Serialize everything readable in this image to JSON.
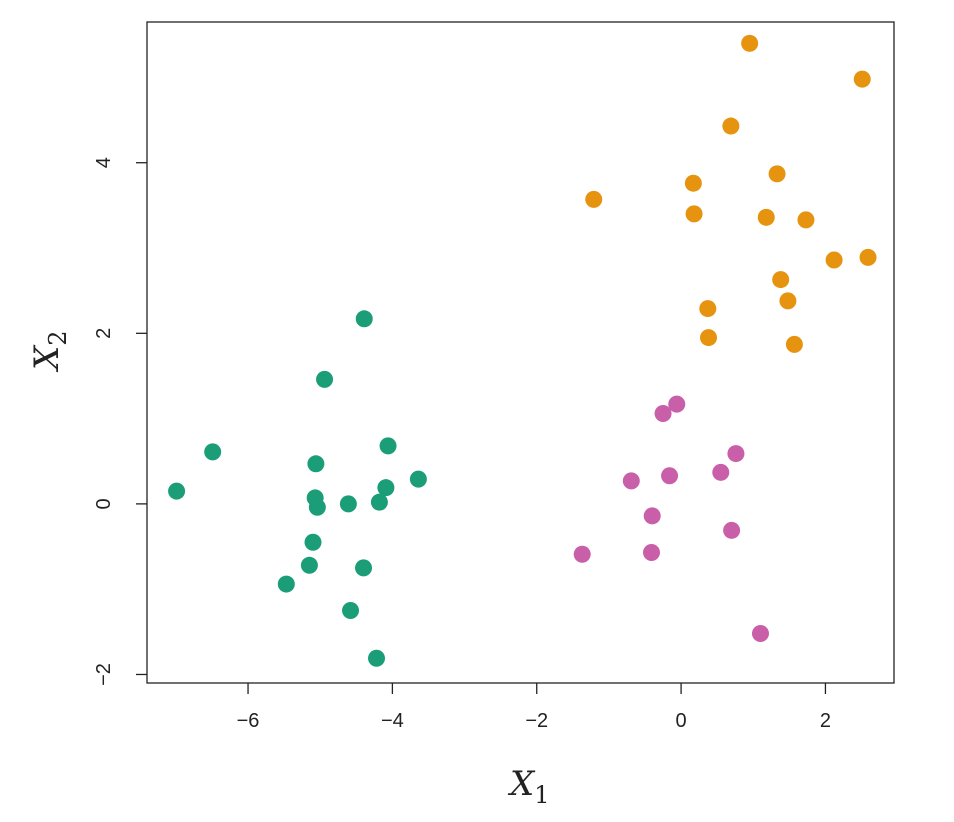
{
  "chart_data": {
    "type": "scatter",
    "xlabel": "X",
    "xlabel_sub": "1",
    "ylabel": "X",
    "ylabel_sub": "2",
    "xlim": [
      -7.4,
      2.95
    ],
    "ylim": [
      -2.1,
      5.65
    ],
    "x_ticks": [
      -6,
      -4,
      -2,
      0,
      2
    ],
    "x_tick_labels": [
      "−6",
      "−4",
      "−2",
      "0",
      "2"
    ],
    "y_ticks": [
      -2,
      0,
      2,
      4
    ],
    "y_tick_labels": [
      "−2",
      "0",
      "2",
      "4"
    ],
    "grid": false,
    "series": [
      {
        "color": "#1b9e77",
        "points": [
          [
            -4.39,
            2.17
          ],
          [
            -4.94,
            1.46
          ],
          [
            -6.49,
            0.61
          ],
          [
            -6.99,
            0.15
          ],
          [
            -5.06,
            0.47
          ],
          [
            -4.06,
            0.68
          ],
          [
            -3.64,
            0.29
          ],
          [
            -4.09,
            0.19
          ],
          [
            -5.07,
            0.07
          ],
          [
            -5.04,
            -0.04
          ],
          [
            -4.61,
            0.0
          ],
          [
            -4.18,
            0.02
          ],
          [
            -5.1,
            -0.45
          ],
          [
            -5.15,
            -0.72
          ],
          [
            -4.4,
            -0.75
          ],
          [
            -5.47,
            -0.94
          ],
          [
            -4.58,
            -1.25
          ],
          [
            -4.22,
            -1.81
          ]
        ]
      },
      {
        "color": "#e6930f",
        "points": [
          [
            0.95,
            5.4
          ],
          [
            2.51,
            4.98
          ],
          [
            0.69,
            4.43
          ],
          [
            0.17,
            3.76
          ],
          [
            1.33,
            3.87
          ],
          [
            -1.21,
            3.57
          ],
          [
            0.18,
            3.4
          ],
          [
            1.18,
            3.36
          ],
          [
            1.73,
            3.33
          ],
          [
            2.12,
            2.86
          ],
          [
            2.59,
            2.89
          ],
          [
            1.38,
            2.63
          ],
          [
            1.48,
            2.38
          ],
          [
            0.37,
            2.29
          ],
          [
            0.38,
            1.95
          ],
          [
            1.57,
            1.87
          ]
        ]
      },
      {
        "color": "#c95fa8",
        "points": [
          [
            -0.25,
            1.06
          ],
          [
            -0.06,
            1.17
          ],
          [
            0.76,
            0.59
          ],
          [
            -0.69,
            0.27
          ],
          [
            -0.16,
            0.33
          ],
          [
            0.55,
            0.37
          ],
          [
            -0.4,
            -0.14
          ],
          [
            -0.41,
            -0.57
          ],
          [
            -1.37,
            -0.59
          ],
          [
            0.7,
            -0.31
          ],
          [
            1.1,
            -1.52
          ]
        ]
      }
    ]
  }
}
